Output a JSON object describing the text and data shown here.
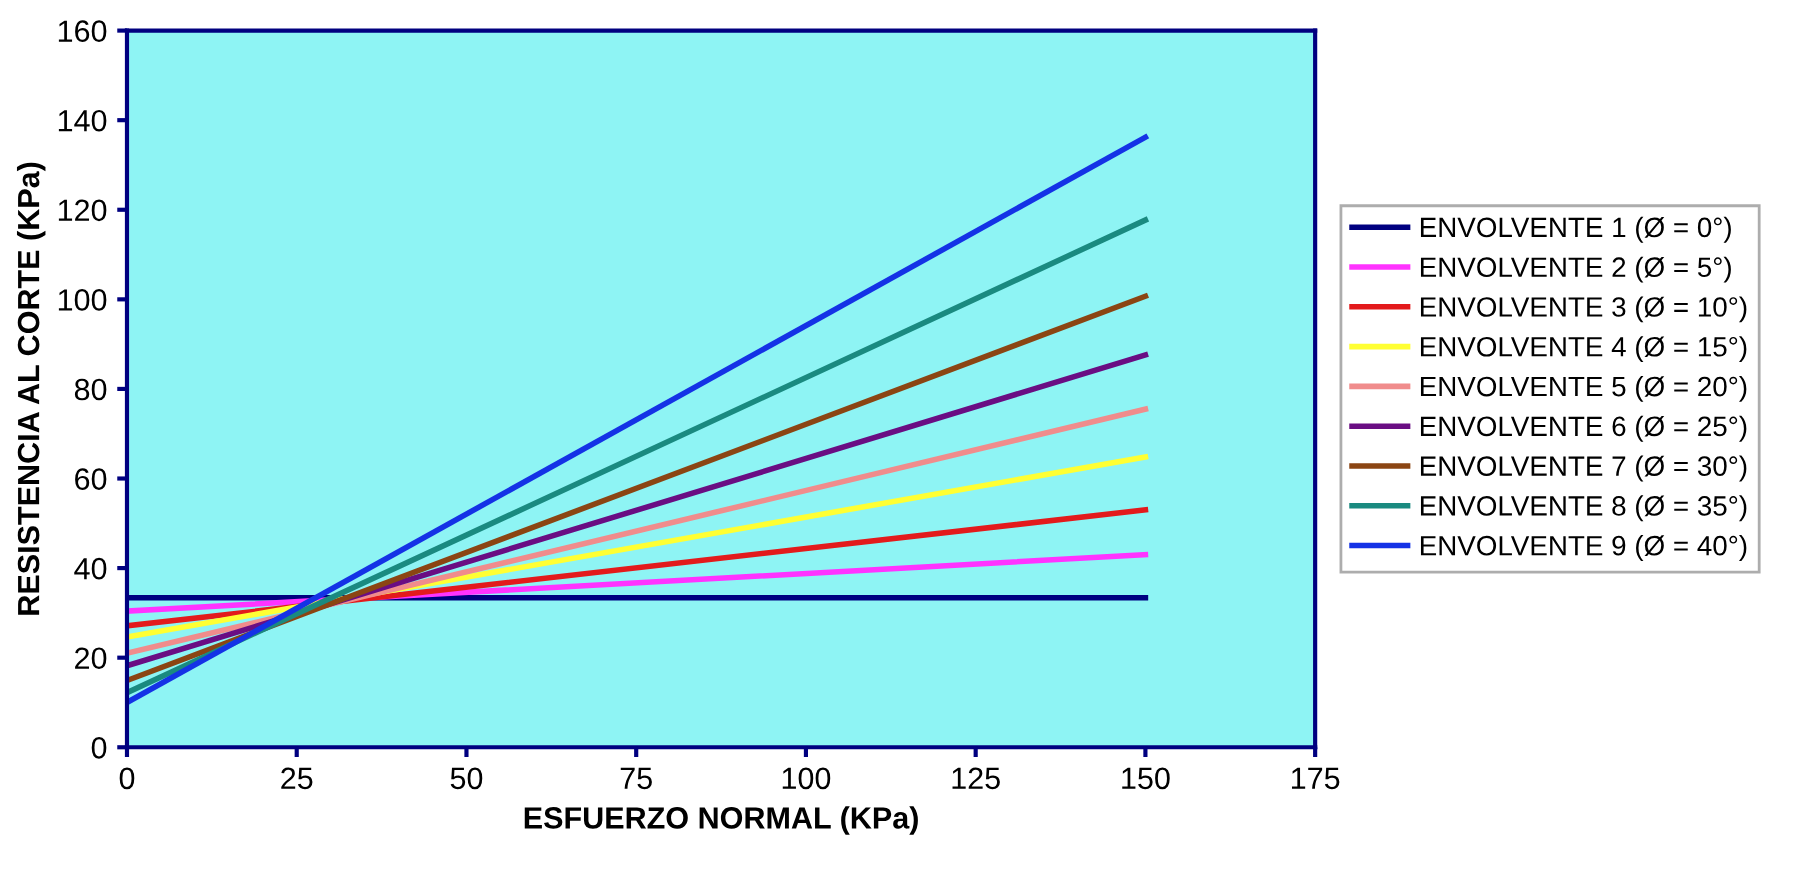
{
  "chart_data": {
    "type": "line",
    "xlabel": "ESFUERZO NORMAL (KPa)",
    "ylabel": "RESISTENCIA AL CORTE (KPa)",
    "x": [
      0,
      150
    ],
    "xlim": [
      0,
      175
    ],
    "xticks": [
      0,
      25,
      50,
      75,
      100,
      125,
      150,
      175
    ],
    "ylim": [
      0,
      160
    ],
    "yticks": [
      0,
      20,
      40,
      60,
      80,
      100,
      120,
      140,
      160
    ],
    "grid": false,
    "legend": "right",
    "marker": "none",
    "line_style": "solid",
    "series": [
      {
        "name": "ENVOLVENTE 1 (Ø = 0°)",
        "color": "#000080",
        "values": [
          33.4,
          33.4
        ]
      },
      {
        "name": "ENVOLVENTE 2 (Ø = 5°)",
        "color": "#ff33ff",
        "values": [
          30.4,
          43
        ]
      },
      {
        "name": "ENVOLVENTE 3 (Ø = 10°)",
        "color": "#e31a1c",
        "values": [
          27.1,
          53
        ]
      },
      {
        "name": "ENVOLVENTE 4 (Ø = 15°)",
        "color": "#ffff33",
        "values": [
          24.6,
          64.8
        ]
      },
      {
        "name": "ENVOLVENTE 5 (Ø = 20°)",
        "color": "#f08c8c",
        "values": [
          21,
          75.5
        ]
      },
      {
        "name": "ENVOLVENTE 6 (Ø = 25°)",
        "color": "#6a0d83",
        "values": [
          18.2,
          87.6
        ]
      },
      {
        "name": "ENVOLVENTE 7 (Ø = 30°)",
        "color": "#8b4513",
        "values": [
          14.9,
          100.7
        ]
      },
      {
        "name": "ENVOLVENTE 8 (Ø = 35°)",
        "color": "#1a8a80",
        "values": [
          12.2,
          117.7
        ]
      },
      {
        "name": "ENVOLVENTE 9 (Ø = 40°)",
        "color": "#1432e6",
        "values": [
          10,
          136.2
        ]
      }
    ]
  }
}
